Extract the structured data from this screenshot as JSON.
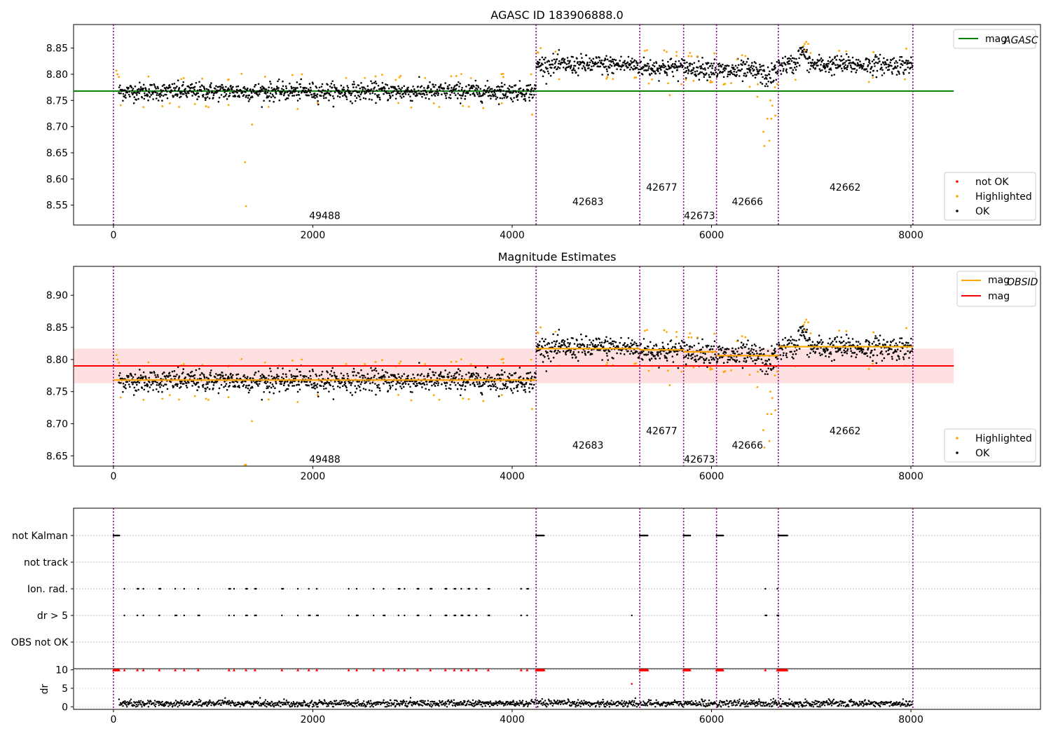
{
  "chart_data": [
    {
      "type": "scatter",
      "title": "AGASC ID 183906888.0",
      "xlim": [
        -400,
        9300
      ],
      "ylim": [
        8.512,
        8.895
      ],
      "x_ticks": [
        "0",
        "2000",
        "4000",
        "6000",
        "8000"
      ],
      "y_ticks": [
        "8.55",
        "8.60",
        "8.65",
        "8.70",
        "8.75",
        "8.80",
        "8.85"
      ],
      "obsid_boundaries": [
        0,
        4240,
        5280,
        5720,
        6050,
        6670,
        8020
      ],
      "obsid_labels": [
        {
          "text": "49488",
          "x": 2120,
          "y": 8.53
        },
        {
          "text": "42683",
          "x": 4760,
          "y": 8.557
        },
        {
          "text": "42677",
          "x": 5500,
          "y": 8.584
        },
        {
          "text": "42673",
          "x": 5880,
          "y": 8.53
        },
        {
          "text": "42666",
          "x": 6360,
          "y": 8.557
        },
        {
          "text": "42662",
          "x": 7340,
          "y": 8.584
        }
      ],
      "lines": [
        {
          "name": "mag_AGASC",
          "label": "mag",
          "subscript": "AGASC",
          "color": "#008000",
          "y": 8.768,
          "x_range": [
            -400,
            8430
          ]
        }
      ],
      "segments": [
        {
          "obsid": "49488",
          "x_range": [
            50,
            4240
          ],
          "mean": 8.767,
          "sd": 0.0085
        },
        {
          "obsid": "42683",
          "x_range": [
            4240,
            5280
          ],
          "mean": 8.818,
          "sd": 0.009
        },
        {
          "obsid": "42677",
          "x_range": [
            5280,
            5720
          ],
          "mean": 8.813,
          "sd": 0.009
        },
        {
          "obsid": "42673",
          "x_range": [
            5720,
            6050
          ],
          "mean": 8.812,
          "sd": 0.009
        },
        {
          "obsid": "42666",
          "x_range": [
            6050,
            6670
          ],
          "mean": 8.806,
          "sd": 0.01
        },
        {
          "obsid": "42662",
          "x_range": [
            6670,
            8020
          ],
          "mean": 8.818,
          "sd": 0.009
        }
      ],
      "series": [
        {
          "name": "not OK",
          "color": "#ff0000"
        },
        {
          "name": "Highlighted",
          "color": "#ffa500"
        },
        {
          "name": "OK",
          "color": "#000000"
        }
      ],
      "legend_lines_position": "upper right",
      "legend_points_position": "lower right"
    },
    {
      "type": "scatter",
      "title": "Magnitude Estimates",
      "xlim": [
        -400,
        9300
      ],
      "ylim": [
        8.634,
        8.945
      ],
      "x_ticks": [
        "0",
        "2000",
        "4000",
        "6000",
        "8000"
      ],
      "y_ticks": [
        "8.65",
        "8.70",
        "8.75",
        "8.80",
        "8.85",
        "8.90"
      ],
      "obsid_boundaries": [
        0,
        4240,
        5280,
        5720,
        6050,
        6670,
        8020
      ],
      "obsid_labels": [
        {
          "text": "49488",
          "x": 2120,
          "y": 8.645
        },
        {
          "text": "42683",
          "x": 4760,
          "y": 8.667
        },
        {
          "text": "42677",
          "x": 5500,
          "y": 8.689
        },
        {
          "text": "42673",
          "x": 5880,
          "y": 8.645
        },
        {
          "text": "42666",
          "x": 6360,
          "y": 8.667
        },
        {
          "text": "42662",
          "x": 7340,
          "y": 8.689
        }
      ],
      "mag": {
        "label": "mag",
        "color": "#ff0000",
        "y": 8.79,
        "band": [
          8.763,
          8.817
        ],
        "x_range": [
          -400,
          8430
        ]
      },
      "mag_obsid": [
        {
          "obsid": "49488",
          "label": "mag",
          "subscript": "OBSID",
          "color": "#ffa500",
          "y": 8.768,
          "x_range": [
            0,
            4240
          ]
        },
        {
          "obsid": "42683",
          "y": 8.817,
          "x_range": [
            4240,
            5280
          ]
        },
        {
          "obsid": "42677",
          "y": 8.815,
          "x_range": [
            5280,
            5720
          ]
        },
        {
          "obsid": "42673",
          "y": 8.812,
          "x_range": [
            5720,
            6050
          ]
        },
        {
          "obsid": "42666",
          "y": 8.806,
          "x_range": [
            6050,
            6670
          ]
        },
        {
          "obsid": "42662",
          "y": 8.82,
          "x_range": [
            6670,
            8020
          ]
        }
      ],
      "series": [
        {
          "name": "Highlighted",
          "color": "#ffa500"
        },
        {
          "name": "OK",
          "color": "#000000"
        }
      ],
      "legend_lines_position": "upper right",
      "legend_points_position": "lower right"
    },
    {
      "type": "scatter",
      "title": "",
      "xlim": [
        -400,
        9300
      ],
      "x_ticks": [
        "0",
        "2000",
        "4000",
        "6000",
        "8000"
      ],
      "flag_rows": [
        "not Kalman",
        "not track",
        "Ion. rad.",
        "dr > 5",
        "OBS not OK"
      ],
      "flags": {
        "not Kalman": [
          [
            0,
            60
          ],
          [
            4240,
            4320
          ],
          [
            5280,
            5360
          ],
          [
            5720,
            5790
          ],
          [
            6050,
            6120
          ],
          [
            6670,
            6760
          ]
        ],
        "not track": [],
        "Ion. rad.": [
          110,
          240,
          300,
          460,
          620,
          710,
          850,
          1160,
          1210,
          1330,
          1420,
          1690,
          1850,
          1960,
          2040,
          2360,
          2440,
          2610,
          2710,
          2860,
          2920,
          3050,
          3180,
          3330,
          3420,
          3490,
          3560,
          3640,
          3760,
          4090,
          4150,
          6540,
          6660
        ],
        "dr > 5": [
          110,
          240,
          300,
          460,
          620,
          710,
          850,
          1160,
          1210,
          1330,
          1420,
          1690,
          1850,
          1960,
          2040,
          2360,
          2440,
          2610,
          2710,
          2860,
          2920,
          3050,
          3180,
          3330,
          3420,
          3490,
          3560,
          3640,
          3760,
          4090,
          4150,
          5200,
          6540,
          6660
        ],
        "OBS not OK": []
      },
      "dr_ylim": [
        -0.7,
        10.3
      ],
      "dr_ylabel": "dr",
      "dr_y_ticks": [
        "0",
        "5",
        "10"
      ],
      "dr_mean": 0.9,
      "dr_capped_value": 10,
      "dr_color": "#ff0000"
    }
  ]
}
